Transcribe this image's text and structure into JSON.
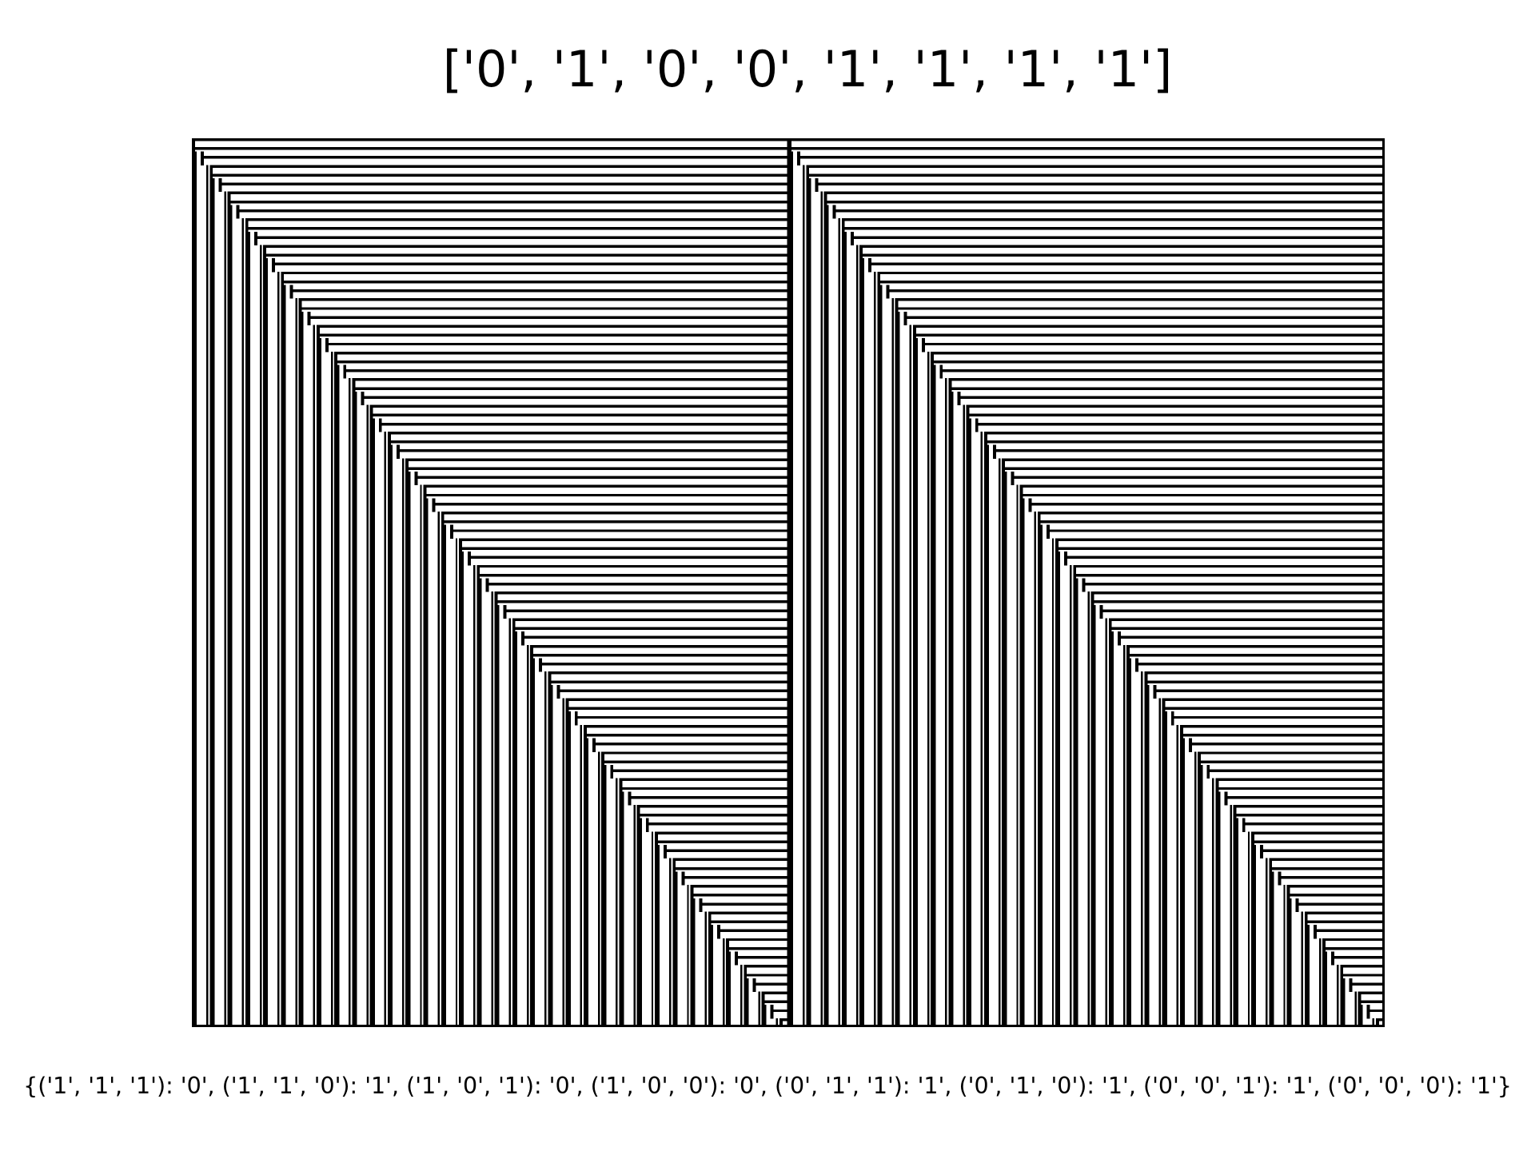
{
  "title": "['0', '1', '0', '0', '1', '1', '1', '1']",
  "rule_caption": "{('1', '1', '1'): '0', ('1', '1', '0'): '1', ('1', '0', '1'): '0', ('1', '0', '0'): '0', ('0', '1', '1'): '1', ('0', '1', '0'): '1', ('0', '0', '1'): '1', ('0', '0', '0'): '1'}",
  "automaton": {
    "rule_bits": [
      "0",
      "1",
      "0",
      "0",
      "1",
      "1",
      "1",
      "1"
    ],
    "generations": 200,
    "cells_per_half": 67,
    "colors": {
      "on": "#000000",
      "off": "#ffffff"
    }
  }
}
